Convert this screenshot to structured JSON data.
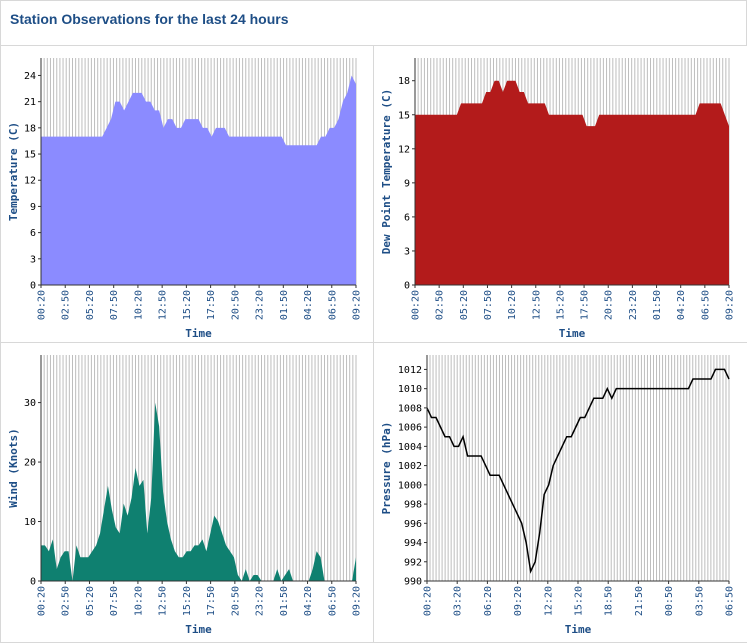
{
  "header": {
    "title": "Station Observations for the last 24 hours"
  },
  "chart_data": [
    {
      "type": "area",
      "ylabel": "Temperature (C)",
      "xlabel": "Time",
      "ylim": [
        0,
        26
      ],
      "yticks": [
        0,
        3,
        6,
        9,
        12,
        15,
        18,
        21,
        24
      ],
      "xticks": [
        "00:20",
        "02:50",
        "05:20",
        "07:50",
        "10:20",
        "12:50",
        "15:20",
        "17:50",
        "20:50",
        "23:20",
        "01:50",
        "04:20",
        "06:50",
        "09:20"
      ],
      "grid": true,
      "color": "#8b8bff",
      "values": [
        17,
        17,
        17,
        17,
        17,
        17,
        17,
        17,
        17,
        17,
        17,
        17,
        17,
        17,
        17,
        18,
        19,
        21,
        21,
        20,
        21,
        22,
        22,
        22,
        21,
        21,
        20,
        20,
        18,
        19,
        19,
        18,
        18,
        19,
        19,
        19,
        19,
        18,
        18,
        17,
        18,
        18,
        18,
        17,
        17,
        17,
        17,
        17,
        17,
        17,
        17,
        17,
        17,
        17,
        17,
        17,
        16,
        16,
        16,
        16,
        16,
        16,
        16,
        16,
        17,
        17,
        18,
        18,
        19,
        21,
        22,
        24,
        23
      ]
    },
    {
      "type": "area",
      "ylabel": "Dew Point Temperature (C)",
      "xlabel": "Time",
      "ylim": [
        0,
        20
      ],
      "yticks": [
        0,
        3,
        6,
        9,
        12,
        15,
        18
      ],
      "xticks": [
        "00:20",
        "02:50",
        "05:20",
        "07:50",
        "10:20",
        "12:50",
        "15:20",
        "17:50",
        "20:50",
        "23:20",
        "01:50",
        "04:20",
        "06:50",
        "09:20"
      ],
      "grid": true,
      "color": "#b31b1b",
      "values": [
        15,
        15,
        15,
        15,
        15,
        15,
        15,
        15,
        15,
        15,
        15,
        16,
        16,
        16,
        16,
        16,
        16,
        17,
        17,
        18,
        18,
        17,
        18,
        18,
        18,
        17,
        17,
        16,
        16,
        16,
        16,
        16,
        15,
        15,
        15,
        15,
        15,
        15,
        15,
        15,
        15,
        14,
        14,
        14,
        15,
        15,
        15,
        15,
        15,
        15,
        15,
        15,
        15,
        15,
        15,
        15,
        15,
        15,
        15,
        15,
        15,
        15,
        15,
        15,
        15,
        15,
        15,
        15,
        16,
        16,
        16,
        16,
        16,
        16,
        15,
        14
      ]
    },
    {
      "type": "area",
      "ylabel": "Wind (Knots)",
      "xlabel": "Time",
      "ylim": [
        0,
        38
      ],
      "yticks": [
        0,
        10,
        20,
        30
      ],
      "xticks": [
        "00:20",
        "02:50",
        "05:20",
        "07:50",
        "10:20",
        "12:50",
        "15:20",
        "17:50",
        "20:50",
        "23:20",
        "01:50",
        "04:20",
        "06:50",
        "09:20"
      ],
      "grid": true,
      "color": "#0f8070",
      "values": [
        6,
        6,
        5,
        7,
        2,
        4,
        5,
        5,
        0,
        6,
        4,
        4,
        4,
        5,
        6,
        8,
        12,
        16,
        12,
        9,
        8,
        13,
        11,
        14,
        19,
        16,
        17,
        8,
        14,
        30,
        26,
        15,
        10,
        7,
        5,
        4,
        4,
        5,
        5,
        6,
        6,
        7,
        5,
        8,
        11,
        10,
        8,
        6,
        5,
        4,
        1,
        0,
        2,
        0,
        1,
        1,
        0,
        0,
        0,
        0,
        2,
        0,
        1,
        2,
        0,
        0,
        0,
        0,
        0,
        2,
        5,
        4,
        0,
        0,
        0,
        0,
        0,
        0,
        0,
        0,
        4
      ]
    },
    {
      "type": "line",
      "ylabel": "Pressure (hPa)",
      "xlabel": "Time",
      "ylim": [
        990,
        1013.5
      ],
      "yticks": [
        990,
        992,
        994,
        996,
        998,
        1000,
        1002,
        1004,
        1006,
        1008,
        1010,
        1012
      ],
      "xticks": [
        "00:20",
        "03:20",
        "06:20",
        "09:20",
        "12:20",
        "15:20",
        "18:50",
        "21:50",
        "00:50",
        "03:50",
        "06:50"
      ],
      "grid": true,
      "color": "#000000",
      "values": [
        1008,
        1007,
        1007,
        1006,
        1005,
        1005,
        1004,
        1004,
        1005,
        1003,
        1003,
        1003,
        1003,
        1002,
        1001,
        1001,
        1001,
        1000,
        999,
        998,
        997,
        996,
        994,
        991,
        992,
        995,
        999,
        1000,
        1002,
        1003,
        1004,
        1005,
        1005,
        1006,
        1007,
        1007,
        1008,
        1009,
        1009,
        1009,
        1010,
        1009,
        1010,
        1010,
        1010,
        1010,
        1010,
        1010,
        1010,
        1010,
        1010,
        1010,
        1010,
        1010,
        1010,
        1010,
        1010,
        1010,
        1010,
        1011,
        1011,
        1011,
        1011,
        1011,
        1012,
        1012,
        1012,
        1011
      ]
    }
  ]
}
